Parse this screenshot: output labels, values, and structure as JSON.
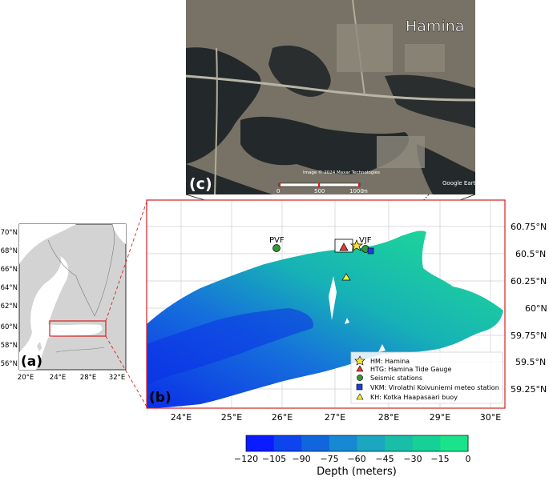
{
  "panel_c": {
    "label": "(c)",
    "place_label": "Hamina",
    "attribution": "Image © 2024 Maxar Technologies",
    "watermark": "Google Earth",
    "scalebar": {
      "ticks": [
        "0",
        "500",
        "1000"
      ],
      "unit": "m"
    }
  },
  "panel_a": {
    "label": "(a)",
    "lat_ticks": [
      "70°N",
      "68°N",
      "66°N",
      "64°N",
      "62°N",
      "60°N",
      "58°N",
      "56°N"
    ],
    "lon_ticks": [
      "20°E",
      "24°E",
      "28°E",
      "32°E"
    ]
  },
  "panel_b": {
    "label": "(b)",
    "lat_ticks": [
      "60.75°N",
      "60.5°N",
      "60.25°N",
      "60°N",
      "59.75°N",
      "59.5°N",
      "59.25°N"
    ],
    "lon_ticks": [
      "24°E",
      "25°E",
      "26°E",
      "27°E",
      "28°E",
      "29°E",
      "30°E"
    ],
    "station_labels": {
      "pvf": "PVF",
      "vjf": "VJF"
    },
    "legend": [
      {
        "symbol": "star",
        "color": "#ffe13c",
        "text": "HM: Hamina"
      },
      {
        "symbol": "triangle",
        "color": "#e53b2c",
        "text": "HTG: Hamina Tide Gauge"
      },
      {
        "symbol": "circle",
        "color": "#2f9a3a",
        "text": "Seismic stations"
      },
      {
        "symbol": "square",
        "color": "#1f3fd8",
        "text": "VKM: Virolathi Koivuniemi meteo station"
      },
      {
        "symbol": "triangle",
        "color": "#f4f23a",
        "text": "KH: Kotka Haapasaari buoy"
      }
    ]
  },
  "colorbar": {
    "title": "Depth (meters)",
    "ticks": [
      "−120",
      "−105",
      "−90",
      "−75",
      "−60",
      "−45",
      "−30",
      "−15",
      "0"
    ],
    "colors": [
      "#0b1bff",
      "#0d44ee",
      "#1266dd",
      "#1788d2",
      "#1ca6c0",
      "#19bea7",
      "#15d195",
      "#1be38b"
    ]
  }
}
